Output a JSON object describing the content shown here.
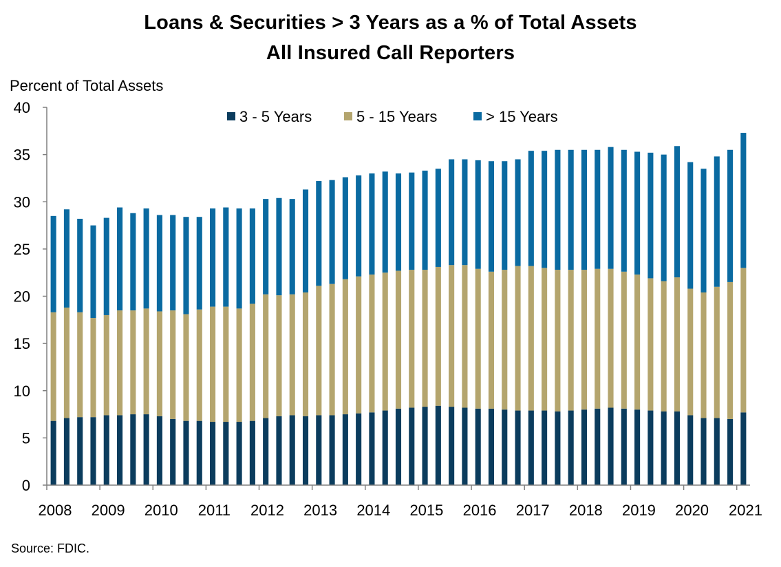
{
  "title": "Loans & Securities > 3 Years as a % of Total Assets",
  "subtitle": "All Insured Call Reporters",
  "source": "Source: FDIC.",
  "colors": {
    "s1": "#0b3c5d",
    "s2": "#b4a56e",
    "s3": "#0a6aa1",
    "axis": "#7f7f7f"
  },
  "chart_data": {
    "type": "bar",
    "stacked": true,
    "ylabel": "Percent of Total Assets",
    "xlabel": "",
    "ylim": [
      0,
      40
    ],
    "yticks": [
      0,
      5,
      10,
      15,
      20,
      25,
      30,
      35,
      40
    ],
    "xtick_labels": [
      "2008",
      "2009",
      "2010",
      "2011",
      "2012",
      "2013",
      "2014",
      "2015",
      "2016",
      "2017",
      "2018",
      "2019",
      "2020",
      "2021"
    ],
    "legend": "top-center",
    "categories": [
      "2008Q1",
      "2008Q2",
      "2008Q3",
      "2008Q4",
      "2009Q1",
      "2009Q2",
      "2009Q3",
      "2009Q4",
      "2010Q1",
      "2010Q2",
      "2010Q3",
      "2010Q4",
      "2011Q1",
      "2011Q2",
      "2011Q3",
      "2011Q4",
      "2012Q1",
      "2012Q2",
      "2012Q3",
      "2012Q4",
      "2013Q1",
      "2013Q2",
      "2013Q3",
      "2013Q4",
      "2014Q1",
      "2014Q2",
      "2014Q3",
      "2014Q4",
      "2015Q1",
      "2015Q2",
      "2015Q3",
      "2015Q4",
      "2016Q1",
      "2016Q2",
      "2016Q3",
      "2016Q4",
      "2017Q1",
      "2017Q2",
      "2017Q3",
      "2017Q4",
      "2018Q1",
      "2018Q2",
      "2018Q3",
      "2018Q4",
      "2019Q1",
      "2019Q2",
      "2019Q3",
      "2019Q4",
      "2020Q1",
      "2020Q2",
      "2020Q3",
      "2020Q4",
      "2021Q1"
    ],
    "series": [
      {
        "name": "3 - 5 Years",
        "values": [
          6.8,
          7.1,
          7.2,
          7.2,
          7.4,
          7.4,
          7.5,
          7.5,
          7.3,
          7.0,
          6.8,
          6.8,
          6.7,
          6.7,
          6.7,
          6.8,
          7.1,
          7.3,
          7.4,
          7.3,
          7.4,
          7.4,
          7.5,
          7.6,
          7.7,
          7.9,
          8.1,
          8.2,
          8.3,
          8.4,
          8.3,
          8.2,
          8.1,
          8.1,
          8.0,
          7.9,
          7.9,
          7.9,
          7.8,
          7.9,
          8.0,
          8.1,
          8.2,
          8.1,
          8.0,
          7.9,
          7.8,
          7.8,
          7.4,
          7.1,
          7.1,
          7.0,
          7.7
        ]
      },
      {
        "name": "5 - 15 Years",
        "values": [
          11.5,
          11.7,
          11.1,
          10.5,
          10.6,
          11.1,
          11.0,
          11.2,
          11.1,
          11.5,
          11.3,
          11.8,
          12.2,
          12.2,
          12.0,
          12.4,
          13.1,
          12.8,
          12.8,
          13.1,
          13.7,
          13.9,
          14.3,
          14.5,
          14.6,
          14.6,
          14.6,
          14.6,
          14.5,
          14.7,
          15.0,
          15.1,
          14.8,
          14.5,
          14.8,
          15.3,
          15.3,
          15.1,
          15.0,
          14.9,
          14.8,
          14.8,
          14.7,
          14.5,
          14.3,
          14.0,
          13.8,
          14.2,
          13.4,
          13.3,
          13.9,
          14.5,
          15.3
        ]
      },
      {
        "name": "> 15 Years",
        "values": [
          10.2,
          10.4,
          9.9,
          9.8,
          10.3,
          10.9,
          10.3,
          10.6,
          10.2,
          10.1,
          10.3,
          9.8,
          10.4,
          10.5,
          10.6,
          10.1,
          10.1,
          10.3,
          10.1,
          10.9,
          11.1,
          11.0,
          10.8,
          10.7,
          10.7,
          10.7,
          10.3,
          10.3,
          10.5,
          10.4,
          11.2,
          11.2,
          11.5,
          11.7,
          11.5,
          11.3,
          12.2,
          12.4,
          12.7,
          12.7,
          12.7,
          12.6,
          12.9,
          12.9,
          13.0,
          13.3,
          13.4,
          13.9,
          13.4,
          13.1,
          13.8,
          14.0,
          14.3
        ]
      }
    ]
  }
}
